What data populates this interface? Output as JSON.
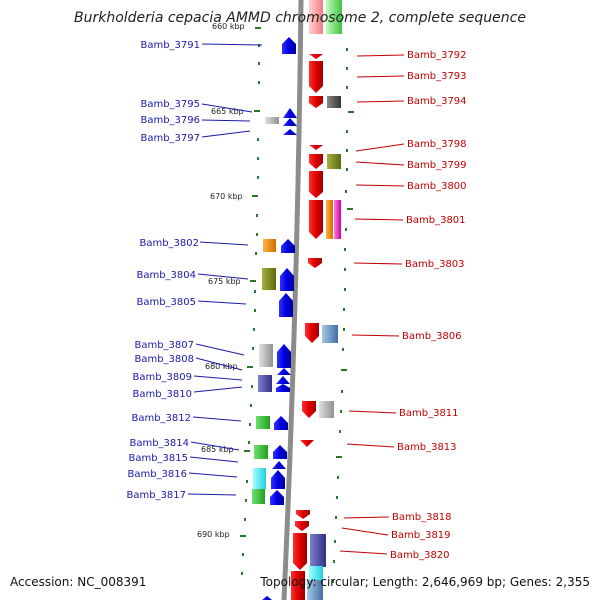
{
  "title": "Burkholderia cepacia AMMD chromosome 2, complete sequence",
  "accession": "Accession: NC_008391",
  "topology": "Topology: circular; Length: 2,646,969 bp; Genes: 2,355",
  "ticks": [
    "660 kbp",
    "665 kbp",
    "670 kbp",
    "675 kbp",
    "680 kbp",
    "685 kbp",
    "690 kbp"
  ],
  "left_genes": [
    "Bamb_3791",
    "Bamb_3795",
    "Bamb_3796",
    "Bamb_3797",
    "Bamb_3802",
    "Bamb_3804",
    "Bamb_3805",
    "Bamb_3807",
    "Bamb_3808",
    "Bamb_3809",
    "Bamb_3810",
    "Bamb_3812",
    "Bamb_3814",
    "Bamb_3815",
    "Bamb_3816",
    "Bamb_3817"
  ],
  "right_genes": [
    "Bamb_3792",
    "Bamb_3793",
    "Bamb_3794",
    "Bamb_3798",
    "Bamb_3799",
    "Bamb_3800",
    "Bamb_3801",
    "Bamb_3803",
    "Bamb_3806",
    "Bamb_3811",
    "Bamb_3813",
    "Bamb_3818",
    "Bamb_3819",
    "Bamb_3820"
  ],
  "colors": {
    "forward_strand": "#0000ee",
    "reverse_strand": "#ee0000",
    "left_label": "#1a1aa8",
    "right_label": "#c00000",
    "tick_mark": "#2a7a2a",
    "backbone": "#8c8c8c"
  }
}
